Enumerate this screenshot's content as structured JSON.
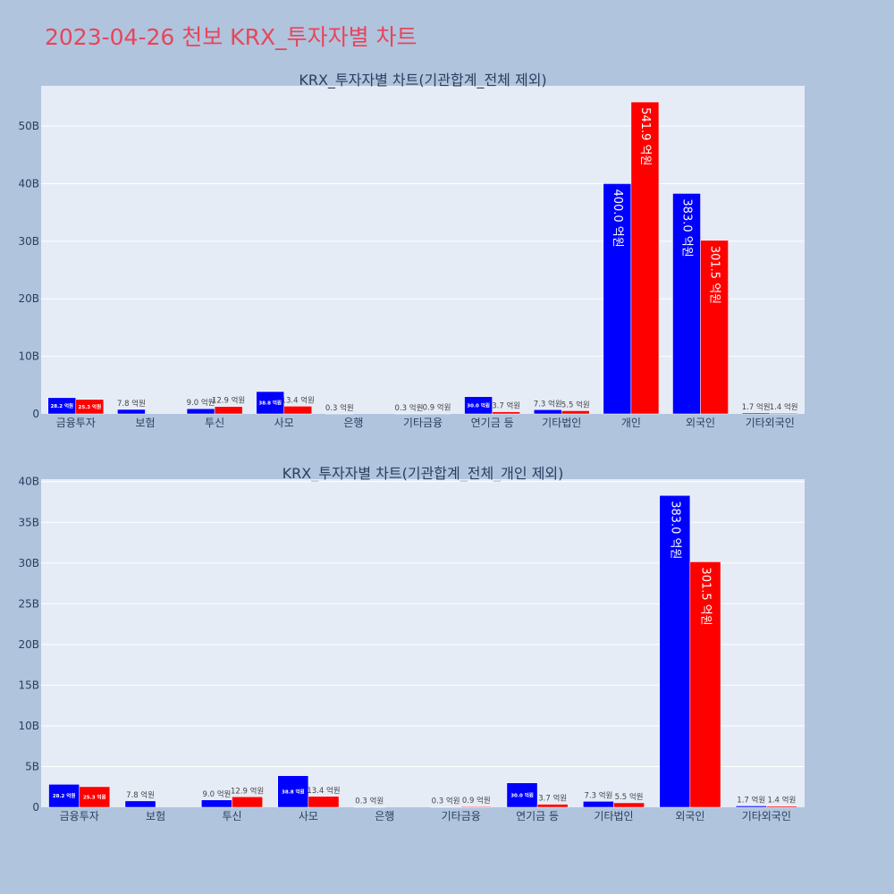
{
  "page": {
    "title": "2023-04-26 천보 KRX_투자자별 차트"
  },
  "colors": {
    "series1": "#0000ff",
    "series2": "#ff0000",
    "plot_bg": "#e5ecf6",
    "page_bg": "#b0c4de",
    "title": "#e8455a"
  },
  "chart_data": [
    {
      "type": "bar",
      "title": "KRX_투자자별 차트(기관합계_전체 제외)",
      "categories": [
        "금융투자",
        "보험",
        "투신",
        "사모",
        "은행",
        "기타금융",
        "연기금 등",
        "기타법인",
        "개인",
        "외국인",
        "기타외국인"
      ],
      "series": [
        {
          "values": [
            2820000000,
            780000000,
            900000000,
            3880000000,
            30000000,
            30000000,
            3000000000,
            730000000,
            40000000000,
            38300000000,
            170000000
          ],
          "labels": [
            "28.2 억원",
            "7.8 억원",
            "9.0 억원",
            "38.8 억원",
            "0.3 억원",
            "0.3 억원",
            "30.0 억원",
            "7.3 억원",
            "400.0 억원",
            "383.0 억원",
            "1.7 억원"
          ]
        },
        {
          "values": [
            2530000000,
            0,
            1290000000,
            1340000000,
            0,
            90000000,
            370000000,
            550000000,
            54190000000,
            30150000000,
            140000000
          ],
          "labels": [
            "25.3 억원",
            "",
            "12.9 억원",
            "13.4 억원",
            "",
            "0.9 억원",
            "3.7 억원",
            "5.5 억원",
            "541.9 억원",
            "301.5 억원",
            "1.4 억원"
          ]
        }
      ],
      "yticks": [
        0,
        10000000000,
        20000000000,
        30000000000,
        40000000000,
        50000000000
      ],
      "ytick_labels": [
        "0",
        "10B",
        "20B",
        "30B",
        "40B",
        "50B"
      ],
      "ylim": [
        0,
        57000000000
      ],
      "grid": true
    },
    {
      "type": "bar",
      "title": "KRX_투자자별 차트(기관합계_전체_개인 제외)",
      "categories": [
        "금융투자",
        "보험",
        "투신",
        "사모",
        "은행",
        "기타금융",
        "연기금 등",
        "기타법인",
        "외국인",
        "기타외국인"
      ],
      "series": [
        {
          "values": [
            2820000000,
            780000000,
            900000000,
            3880000000,
            30000000,
            30000000,
            3000000000,
            730000000,
            38300000000,
            170000000
          ],
          "labels": [
            "28.2 억원",
            "7.8 억원",
            "9.0 억원",
            "38.8 억원",
            "0.3 억원",
            "0.3 억원",
            "30.0 억원",
            "7.3 억원",
            "383.0 억원",
            "1.7 억원"
          ]
        },
        {
          "values": [
            2530000000,
            0,
            1290000000,
            1340000000,
            0,
            90000000,
            370000000,
            550000000,
            30150000000,
            140000000
          ],
          "labels": [
            "25.3 억원",
            "",
            "12.9 억원",
            "13.4 억원",
            "",
            "0.9 억원",
            "3.7 억원",
            "5.5 억원",
            "301.5 억원",
            "1.4 억원"
          ]
        }
      ],
      "yticks": [
        0,
        5000000000,
        10000000000,
        15000000000,
        20000000000,
        25000000000,
        30000000000,
        35000000000,
        40000000000
      ],
      "ytick_labels": [
        "0",
        "5B",
        "10B",
        "15B",
        "20B",
        "25B",
        "30B",
        "35B",
        "40B"
      ],
      "ylim": [
        0,
        40300000000
      ],
      "grid": true
    }
  ]
}
